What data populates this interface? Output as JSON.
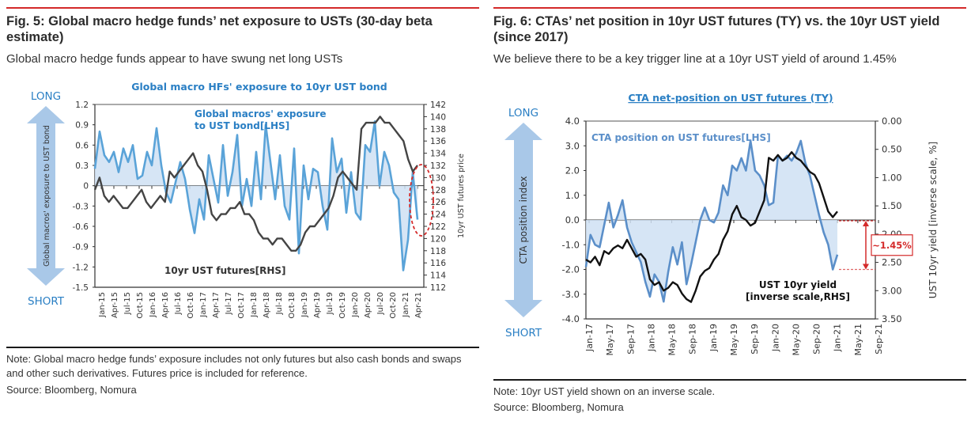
{
  "left": {
    "fig_title": "Fig. 5: Global macro hedge funds’ net exposure to USTs (30-day beta estimate)",
    "subtitle": "Global macro hedge funds appear to have swung net long USTs",
    "note": "Note: Global macro hedge funds’ exposure includes not only futures but also cash bonds and swaps and other such derivatives. Futures price is included for reference.",
    "source": "Source: Bloomberg, Nomura"
  },
  "right": {
    "fig_title": "Fig. 6: CTAs’ net position in 10yr UST futures (TY) vs. the 10yr UST yield (since 2017)",
    "subtitle": "We believe there to be a key trigger line at a 10yr UST yield of around 1.45%",
    "note": "Note: 10yr UST yield shown on an inverse scale.",
    "source": "Source: Bloomberg, Nomura"
  },
  "colors": {
    "accent_red": "#d42a2a",
    "series_blue": "#5aa3d8",
    "area_blue": "#cfe0f3",
    "series_dark": "#444444",
    "label_blue": "#2a7fc4",
    "arrow_blue": "#a9c8e8"
  },
  "chart_data": [
    {
      "type": "line",
      "title": "Global macro HFs' exposure to 10yr UST bond",
      "arrow_top": "LONG",
      "arrow_bottom": "SHORT",
      "ylabel": "Global macros' exposure to UST bond",
      "y2label": "10yr UST futures price",
      "ylim": [
        -1.5,
        1.2
      ],
      "y2lim": [
        112,
        142
      ],
      "yticks": [
        "1.2",
        "0.9",
        "0.6",
        "0.3",
        "0",
        "-0.3",
        "-0.6",
        "-0.9",
        "-1.2",
        "-1.5"
      ],
      "y2ticks": [
        "142",
        "140",
        "138",
        "136",
        "134",
        "132",
        "130",
        "128",
        "126",
        "124",
        "122",
        "120",
        "118",
        "116",
        "114",
        "112"
      ],
      "categories": [
        "Jan-15",
        "Apr-15",
        "Jul-15",
        "Oct-15",
        "Jan-16",
        "Apr-16",
        "Jul-16",
        "Oct-16",
        "Jan-17",
        "Apr-17",
        "Jul-17",
        "Oct-17",
        "Jan-18",
        "Apr-18",
        "Jul-18",
        "Oct-18",
        "Jan-19",
        "Apr-19",
        "Jul-19",
        "Oct-19",
        "Jan-20",
        "Apr-20",
        "Jul-20",
        "Oct-20",
        "Jan-21",
        "Apr-21"
      ],
      "annotation": "dashed red ellipse around Apr-21",
      "series": [
        {
          "name": "Global macros' exposure to UST bond[LHS]",
          "axis": "left",
          "style": "area",
          "values": [
            0.25,
            0.8,
            0.45,
            0.35,
            0.5,
            0.2,
            0.55,
            0.35,
            0.6,
            0.1,
            0.15,
            0.5,
            0.3,
            0.85,
            0.3,
            -0.1,
            -0.25,
            0.05,
            0.35,
            0.1,
            -0.35,
            -0.7,
            -0.2,
            -0.5,
            0.45,
            0.1,
            -0.25,
            0.6,
            -0.15,
            0.2,
            0.75,
            -0.3,
            0.1,
            -0.3,
            0.5,
            -0.2,
            0.9,
            0.35,
            -0.2,
            0.45,
            -0.3,
            -0.5,
            0.55,
            -1.0,
            0.3,
            -0.2,
            0.25,
            0.2,
            -0.3,
            -0.65,
            0.7,
            0.2,
            0.4,
            -0.4,
            0.2,
            -0.4,
            -0.5,
            0.6,
            0.5,
            0.95,
            0.0,
            0.5,
            0.3,
            -0.1,
            -0.2,
            -1.25,
            -0.8,
            0.2,
            -0.5
          ]
        },
        {
          "name": "10yr UST futures[RHS]",
          "axis": "right",
          "style": "line",
          "values": [
            128,
            130,
            127,
            126,
            127,
            126,
            125,
            125,
            126,
            127,
            128,
            126,
            125,
            126,
            127,
            126,
            131,
            130,
            131,
            132,
            133,
            134,
            132,
            131,
            128,
            124,
            123,
            124,
            124,
            125,
            125,
            126,
            124,
            124,
            123,
            121,
            120,
            120,
            119,
            120,
            120,
            119,
            118,
            118,
            119,
            121,
            122,
            122,
            123,
            124,
            125,
            127,
            130,
            131,
            130,
            129,
            128,
            138,
            139,
            139,
            139,
            140,
            139,
            139,
            138,
            137,
            136,
            133,
            131,
            132
          ]
        }
      ]
    },
    {
      "type": "line",
      "title": "CTA net-position on UST futures (TY)",
      "arrow_top": "LONG",
      "arrow_bottom": "SHORT",
      "ylabel": "CTA position index",
      "y2label": "UST 10yr yield [inverse scale, %]",
      "ylim": [
        -4.0,
        4.0
      ],
      "y2lim": [
        3.5,
        0.0
      ],
      "yticks": [
        "4.0",
        "3.0",
        "2.0",
        "1.0",
        "0.0",
        "-1.0",
        "-2.0",
        "-3.0",
        "-4.0"
      ],
      "y2ticks": [
        "0.00",
        "0.50",
        "1.00",
        "1.50",
        "2.00",
        "2.50",
        "3.00",
        "3.50"
      ],
      "categories": [
        "Jan-17",
        "May-17",
        "Sep-17",
        "Jan-18",
        "May-18",
        "Sep-18",
        "Jan-19",
        "May-19",
        "Sep-19",
        "Jan-20",
        "May-20",
        "Sep-20",
        "Jan-21",
        "May-21",
        "Sep-21"
      ],
      "annotation": "~1.45%",
      "series": [
        {
          "name": "CTA position on UST futures[LHS]",
          "axis": "left",
          "style": "area",
          "values": [
            -1.9,
            -0.6,
            -1.0,
            -1.1,
            -0.2,
            0.7,
            -0.3,
            0.2,
            0.8,
            -0.3,
            -0.9,
            -1.3,
            -1.7,
            -2.5,
            -3.1,
            -2.2,
            -2.5,
            -3.3,
            -2.1,
            -1.1,
            -1.8,
            -0.9,
            -2.6,
            -1.8,
            -0.9,
            0.0,
            0.5,
            0.0,
            -0.1,
            0.3,
            1.4,
            1.0,
            2.2,
            2.0,
            2.5,
            2.0,
            3.2,
            2.0,
            1.8,
            1.4,
            0.6,
            0.7,
            2.6,
            2.4,
            2.6,
            2.4,
            2.7,
            3.2,
            2.3,
            1.8,
            1.0,
            0.2,
            -0.5,
            -1.0,
            -2.0,
            -1.4
          ]
        },
        {
          "name": "UST 10yr yield [inverse scale,RHS]",
          "axis": "right",
          "style": "line",
          "values": [
            2.45,
            2.5,
            2.4,
            2.55,
            2.3,
            2.35,
            2.25,
            2.2,
            2.25,
            2.1,
            2.25,
            2.4,
            2.35,
            2.45,
            2.8,
            2.9,
            2.85,
            3.0,
            2.95,
            2.85,
            2.9,
            3.05,
            3.15,
            3.2,
            3.0,
            2.75,
            2.65,
            2.6,
            2.45,
            2.35,
            2.1,
            1.95,
            1.65,
            1.5,
            1.7,
            1.75,
            1.85,
            1.8,
            1.6,
            1.4,
            0.65,
            0.7,
            0.6,
            0.7,
            0.65,
            0.55,
            0.65,
            0.7,
            0.8,
            0.9,
            0.95,
            1.1,
            1.35,
            1.6,
            1.7,
            1.6
          ]
        }
      ]
    }
  ]
}
